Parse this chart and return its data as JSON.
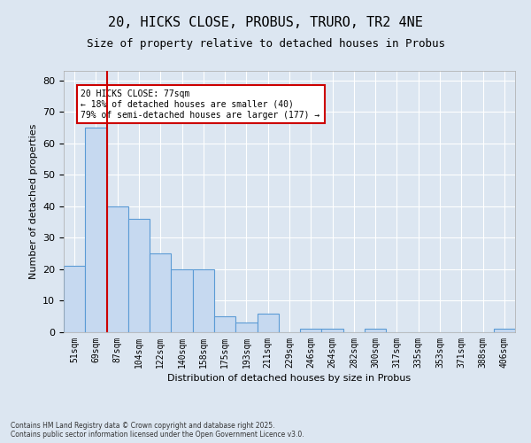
{
  "title_line1": "20, HICKS CLOSE, PROBUS, TRURO, TR2 4NE",
  "title_line2": "Size of property relative to detached houses in Probus",
  "xlabel": "Distribution of detached houses by size in Probus",
  "ylabel": "Number of detached properties",
  "categories": [
    "51sqm",
    "69sqm",
    "87sqm",
    "104sqm",
    "122sqm",
    "140sqm",
    "158sqm",
    "175sqm",
    "193sqm",
    "211sqm",
    "229sqm",
    "246sqm",
    "264sqm",
    "282sqm",
    "300sqm",
    "317sqm",
    "335sqm",
    "353sqm",
    "371sqm",
    "388sqm",
    "406sqm"
  ],
  "values": [
    21,
    65,
    40,
    36,
    25,
    20,
    20,
    5,
    3,
    6,
    0,
    1,
    1,
    0,
    1,
    0,
    0,
    0,
    0,
    0,
    1
  ],
  "bar_color": "#c6d9f0",
  "bar_edge_color": "#5b9bd5",
  "red_line_x": 1.5,
  "annotation_text": "20 HICKS CLOSE: 77sqm\n← 18% of detached houses are smaller (40)\n79% of semi-detached houses are larger (177) →",
  "annotation_box_color": "#ffffff",
  "annotation_box_edge": "#cc0000",
  "ylim": [
    0,
    83
  ],
  "yticks": [
    0,
    10,
    20,
    30,
    40,
    50,
    60,
    70,
    80
  ],
  "background_color": "#dce6f1",
  "grid_color": "#ffffff",
  "footer_line1": "Contains HM Land Registry data © Crown copyright and database right 2025.",
  "footer_line2": "Contains public sector information licensed under the Open Government Licence v3.0."
}
